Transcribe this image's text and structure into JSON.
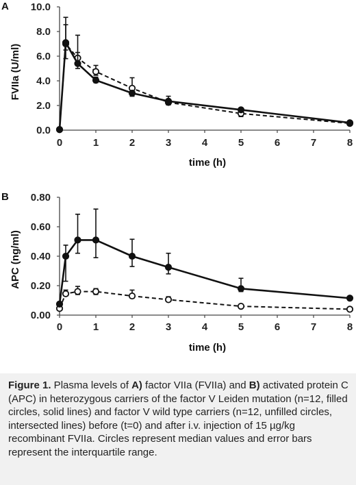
{
  "chart_data": [
    {
      "type": "line",
      "panel_label": "A",
      "xlabel": "time (h)",
      "ylabel": "FVIIa (U/ml)",
      "xlim": [
        0,
        8
      ],
      "ylim": [
        0,
        10
      ],
      "x_ticks": [
        "0",
        "1",
        "2",
        "3",
        "4",
        "5",
        "6",
        "7",
        "8"
      ],
      "y_ticks": [
        "0.0",
        "2.0",
        "4.0",
        "6.0",
        "8.0",
        "10.0"
      ],
      "grid": false,
      "series": [
        {
          "style": "filled circles, solid line",
          "x": [
            0,
            0.17,
            0.5,
            1,
            2,
            3,
            5,
            8
          ],
          "y": [
            0.05,
            7.1,
            5.4,
            4.05,
            3.0,
            2.35,
            1.65,
            0.6
          ],
          "err_low": [
            0.05,
            5.8,
            5.0,
            3.85,
            2.75,
            2.05,
            1.55,
            0.55
          ],
          "err_high": [
            0.05,
            9.15,
            6.3,
            4.3,
            3.2,
            2.5,
            1.8,
            0.65
          ]
        },
        {
          "style": "unfilled circles, dashed line",
          "x": [
            0,
            0.17,
            0.5,
            1,
            2,
            3,
            5,
            8
          ],
          "y": [
            0.05,
            7.0,
            5.85,
            4.75,
            3.4,
            2.25,
            1.35,
            0.55
          ],
          "err_low": [
            0.05,
            6.5,
            5.4,
            4.45,
            3.15,
            2.05,
            1.1,
            0.5
          ],
          "err_high": [
            0.05,
            8.55,
            7.7,
            5.25,
            4.25,
            2.75,
            1.6,
            0.6
          ]
        }
      ]
    },
    {
      "type": "line",
      "panel_label": "B",
      "xlabel": "time (h)",
      "ylabel": "APC (ng/ml)",
      "xlim": [
        0,
        8
      ],
      "ylim": [
        0,
        0.8
      ],
      "x_ticks": [
        "0",
        "1",
        "2",
        "3",
        "4",
        "5",
        "6",
        "7",
        "8"
      ],
      "y_ticks": [
        "0.00",
        "0.20",
        "0.40",
        "0.60",
        "0.80"
      ],
      "grid": false,
      "series": [
        {
          "style": "filled circles, solid line",
          "x": [
            0,
            0.17,
            0.5,
            1,
            2,
            3,
            5,
            8
          ],
          "y": [
            0.075,
            0.4,
            0.51,
            0.51,
            0.4,
            0.325,
            0.18,
            0.115
          ],
          "err_low": [
            0.06,
            0.23,
            0.42,
            0.39,
            0.33,
            0.28,
            0.16,
            0.105
          ],
          "err_high": [
            0.09,
            0.475,
            0.685,
            0.72,
            0.515,
            0.42,
            0.25,
            0.125
          ]
        },
        {
          "style": "unfilled circles, dashed line",
          "x": [
            0,
            0.17,
            0.5,
            1,
            2,
            3,
            5,
            8
          ],
          "y": [
            0.045,
            0.145,
            0.16,
            0.16,
            0.13,
            0.105,
            0.06,
            0.04
          ],
          "err_low": [
            0.035,
            0.13,
            0.14,
            0.14,
            0.115,
            0.095,
            0.05,
            0.035
          ],
          "err_high": [
            0.055,
            0.17,
            0.195,
            0.18,
            0.17,
            0.125,
            0.07,
            0.045
          ]
        }
      ]
    }
  ],
  "caption": {
    "fig": "Figure 1.",
    "t1": " Plasma levels of ",
    "a": "A)",
    "t2": " factor VIIa (FVIIa) and ",
    "b": "B)",
    "t3": " activated protein C (APC) in heterozygous carriers of the factor V Leiden mutation (n=12, filled circles, solid lines) and factor V wild type carriers (n=12, unfilled circles, intersected lines) before (t=0) and after i.v. injection of 15 µg/kg recombinant FVIIa. Circles represent median values and error bars represent the interquartile range."
  }
}
